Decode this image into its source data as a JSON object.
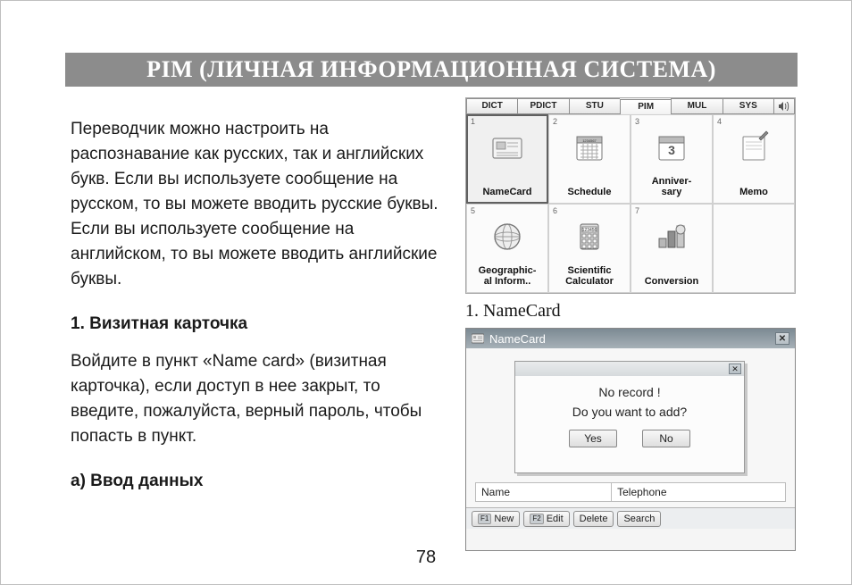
{
  "title": "PIM (ЛИЧНАЯ ИНФОРМАЦИОННАЯ СИСТЕМА)",
  "paragraph1": "Переводчик можно настроить на распознавание как русских, так и английских букв. Если вы используете сообщение на русском, то вы можете вводить русские буквы. Если вы используете сообщение на английском, то вы можете вводить английские буквы.",
  "heading1": "1. Визитная карточка",
  "paragraph2": "Войдите в пункт «Name card» (визитная карточка), если доступ в нее закрыт, то введите, пожалуйста, верный пароль, чтобы попасть в пункт.",
  "heading2": "a) Ввод данных",
  "page_number": "78",
  "caption1": "1. NameCard",
  "tabs": {
    "items": [
      "DICT",
      "PDICT",
      "STU",
      "PIM",
      "MUL",
      "SYS"
    ],
    "active_index": 3
  },
  "apps": [
    {
      "num": "1",
      "label": "NameCard",
      "icon": "namecard",
      "selected": true
    },
    {
      "num": "2",
      "label": "Schedule",
      "icon": "schedule",
      "selected": false
    },
    {
      "num": "3",
      "label": "Anniver-\nsary",
      "icon": "anniversary",
      "selected": false
    },
    {
      "num": "4",
      "label": "Memo",
      "icon": "memo",
      "selected": false
    },
    {
      "num": "5",
      "label": "Geographic-\nal Inform..",
      "icon": "globe",
      "selected": false
    },
    {
      "num": "6",
      "label": "Scientific\nCalculator",
      "icon": "calculator",
      "selected": false
    },
    {
      "num": "7",
      "label": "Conversion",
      "icon": "conversion",
      "selected": false
    }
  ],
  "namecard_window": {
    "title": "NameCard",
    "dialog": {
      "line1": "No record !",
      "line2": "Do you want to add?",
      "yes": "Yes",
      "no": "No"
    },
    "fields": {
      "name": "Name",
      "telephone": "Telephone"
    },
    "buttons": {
      "new": "New",
      "new_fn": "F1",
      "edit": "Edit",
      "edit_fn": "F2",
      "delete": "Delete",
      "search": "Search"
    }
  }
}
